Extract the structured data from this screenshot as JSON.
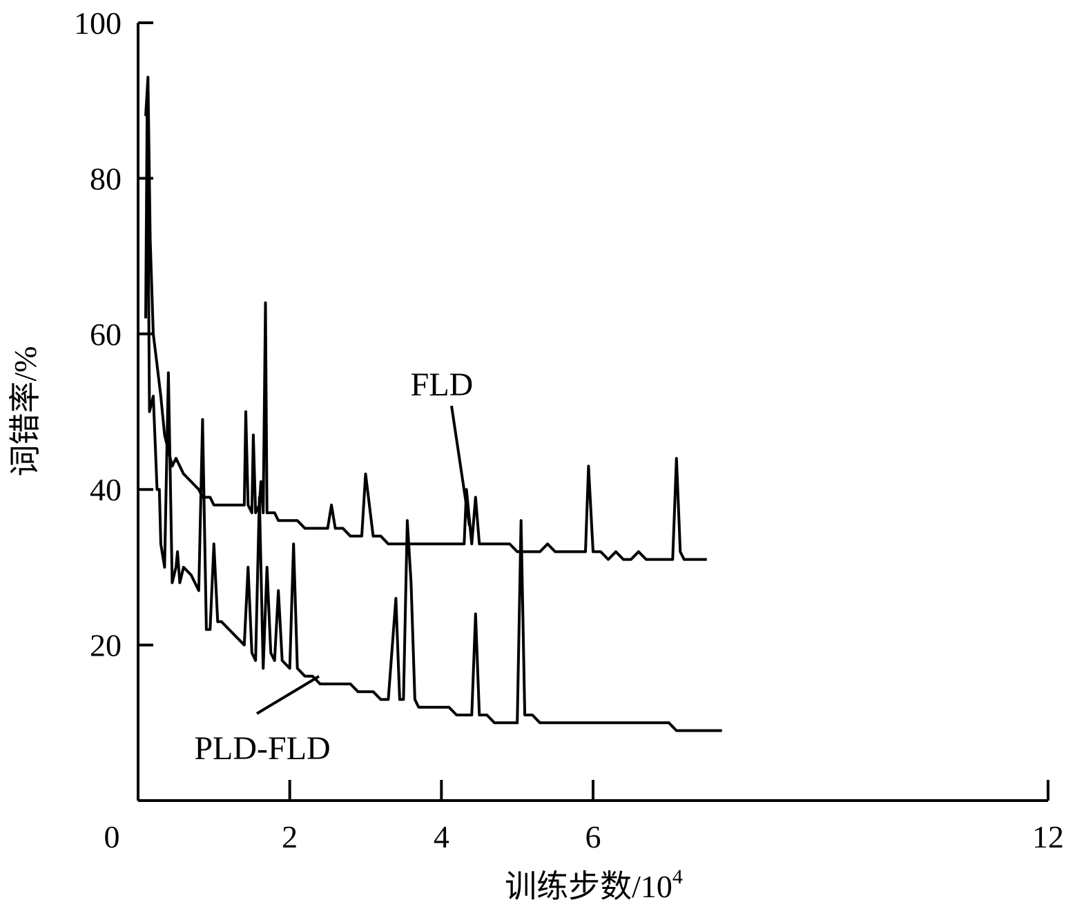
{
  "chart_data": {
    "type": "line",
    "title": "",
    "xlabel": "训练步数/10",
    "xlabel_exponent": "4",
    "ylabel": "词错率/%",
    "xlim": [
      0,
      12
    ],
    "ylim": [
      0,
      100
    ],
    "x_axis_origin_label": "0",
    "x_ticks": [
      2,
      4,
      6,
      12
    ],
    "x_tick_labels": [
      "2",
      "4",
      "6",
      "12"
    ],
    "y_ticks": [
      20,
      40,
      60,
      80,
      100
    ],
    "y_tick_labels": [
      "20",
      "40",
      "60",
      "80",
      "100"
    ],
    "grid": false,
    "legend": "none",
    "line_color": "#000000",
    "series": [
      {
        "name": "FLD",
        "x": [
          0.1,
          0.13,
          0.16,
          0.2,
          0.25,
          0.3,
          0.35,
          0.4,
          0.45,
          0.5,
          0.55,
          0.6,
          0.7,
          0.8,
          0.85,
          0.9,
          0.95,
          1.0,
          1.1,
          1.2,
          1.3,
          1.4,
          1.42,
          1.45,
          1.5,
          1.52,
          1.55,
          1.6,
          1.62,
          1.65,
          1.68,
          1.7,
          1.8,
          1.85,
          1.9,
          2.0,
          2.1,
          2.2,
          2.3,
          2.4,
          2.5,
          2.55,
          2.6,
          2.7,
          2.8,
          2.9,
          2.95,
          3.0,
          3.1,
          3.2,
          3.3,
          3.4,
          3.45,
          3.5,
          3.6,
          3.7,
          3.75,
          3.8,
          3.9,
          4.0,
          4.1,
          4.2,
          4.3,
          4.33,
          4.4,
          4.45,
          4.5,
          4.6,
          4.7,
          4.8,
          4.9,
          5.0,
          5.1,
          5.2,
          5.3,
          5.4,
          5.5,
          5.6,
          5.7,
          5.8,
          5.9,
          5.94,
          6.0,
          6.1,
          6.2,
          6.3,
          6.4,
          6.5,
          6.6,
          6.7,
          6.8,
          6.9,
          7.0,
          7.05,
          7.1,
          7.15,
          7.2,
          7.3,
          7.4,
          7.5
        ],
        "y": [
          88,
          93,
          72,
          60,
          56,
          52,
          47,
          45,
          43,
          44,
          43,
          42,
          41,
          40,
          39,
          39,
          39,
          38,
          38,
          38,
          38,
          38,
          50,
          38,
          37,
          47,
          37,
          38,
          41,
          37,
          64,
          37,
          37,
          36,
          36,
          36,
          36,
          35,
          35,
          35,
          35,
          38,
          35,
          35,
          34,
          34,
          34,
          42,
          34,
          34,
          33,
          33,
          33,
          33,
          33,
          33,
          33,
          33,
          33,
          33,
          33,
          33,
          33,
          40,
          33,
          39,
          33,
          33,
          33,
          33,
          33,
          32,
          32,
          32,
          32,
          33,
          32,
          32,
          32,
          32,
          32,
          43,
          32,
          32,
          31,
          32,
          31,
          31,
          32,
          31,
          31,
          31,
          31,
          31,
          44,
          32,
          31,
          31,
          31,
          31
        ]
      },
      {
        "name": "PLD-FLD",
        "x": [
          0.1,
          0.12,
          0.15,
          0.2,
          0.25,
          0.28,
          0.3,
          0.35,
          0.4,
          0.45,
          0.5,
          0.52,
          0.55,
          0.6,
          0.7,
          0.8,
          0.85,
          0.9,
          0.95,
          1.0,
          1.05,
          1.1,
          1.2,
          1.3,
          1.4,
          1.45,
          1.5,
          1.55,
          1.6,
          1.65,
          1.7,
          1.75,
          1.8,
          1.85,
          1.9,
          2.0,
          2.05,
          2.1,
          2.2,
          2.3,
          2.4,
          2.5,
          2.6,
          2.7,
          2.8,
          2.9,
          3.0,
          3.1,
          3.2,
          3.3,
          3.4,
          3.45,
          3.5,
          3.55,
          3.6,
          3.65,
          3.7,
          3.8,
          3.9,
          4.0,
          4.1,
          4.2,
          4.3,
          4.4,
          4.45,
          4.5,
          4.6,
          4.7,
          4.8,
          4.9,
          5.0,
          5.05,
          5.1,
          5.2,
          5.3,
          5.4,
          5.5,
          5.6,
          5.7,
          5.8,
          5.9,
          6.0,
          6.1,
          6.2,
          6.3,
          6.4,
          6.5,
          6.6,
          6.7,
          6.8,
          6.9,
          7.0,
          7.1,
          7.2,
          7.3,
          7.4,
          7.5,
          7.6,
          7.7
        ],
        "y": [
          62,
          90,
          50,
          52,
          40,
          40,
          33,
          30,
          55,
          28,
          30,
          32,
          28,
          30,
          29,
          27,
          49,
          22,
          22,
          33,
          23,
          23,
          22,
          21,
          20,
          30,
          19,
          18,
          39,
          17,
          30,
          19,
          18,
          27,
          18,
          17,
          33,
          17,
          16,
          16,
          15,
          15,
          15,
          15,
          15,
          14,
          14,
          14,
          13,
          13,
          26,
          13,
          13,
          36,
          28,
          13,
          12,
          12,
          12,
          12,
          12,
          11,
          11,
          11,
          24,
          11,
          11,
          10,
          10,
          10,
          10,
          36,
          11,
          11,
          10,
          10,
          10,
          10,
          10,
          10,
          10,
          10,
          10,
          10,
          10,
          10,
          10,
          10,
          10,
          10,
          10,
          10,
          9,
          9,
          9,
          9,
          9,
          9,
          9
        ]
      }
    ],
    "annotations": [
      {
        "text": "FLD",
        "series": "FLD"
      },
      {
        "text": "PLD-FLD",
        "series": "PLD-FLD"
      }
    ]
  }
}
